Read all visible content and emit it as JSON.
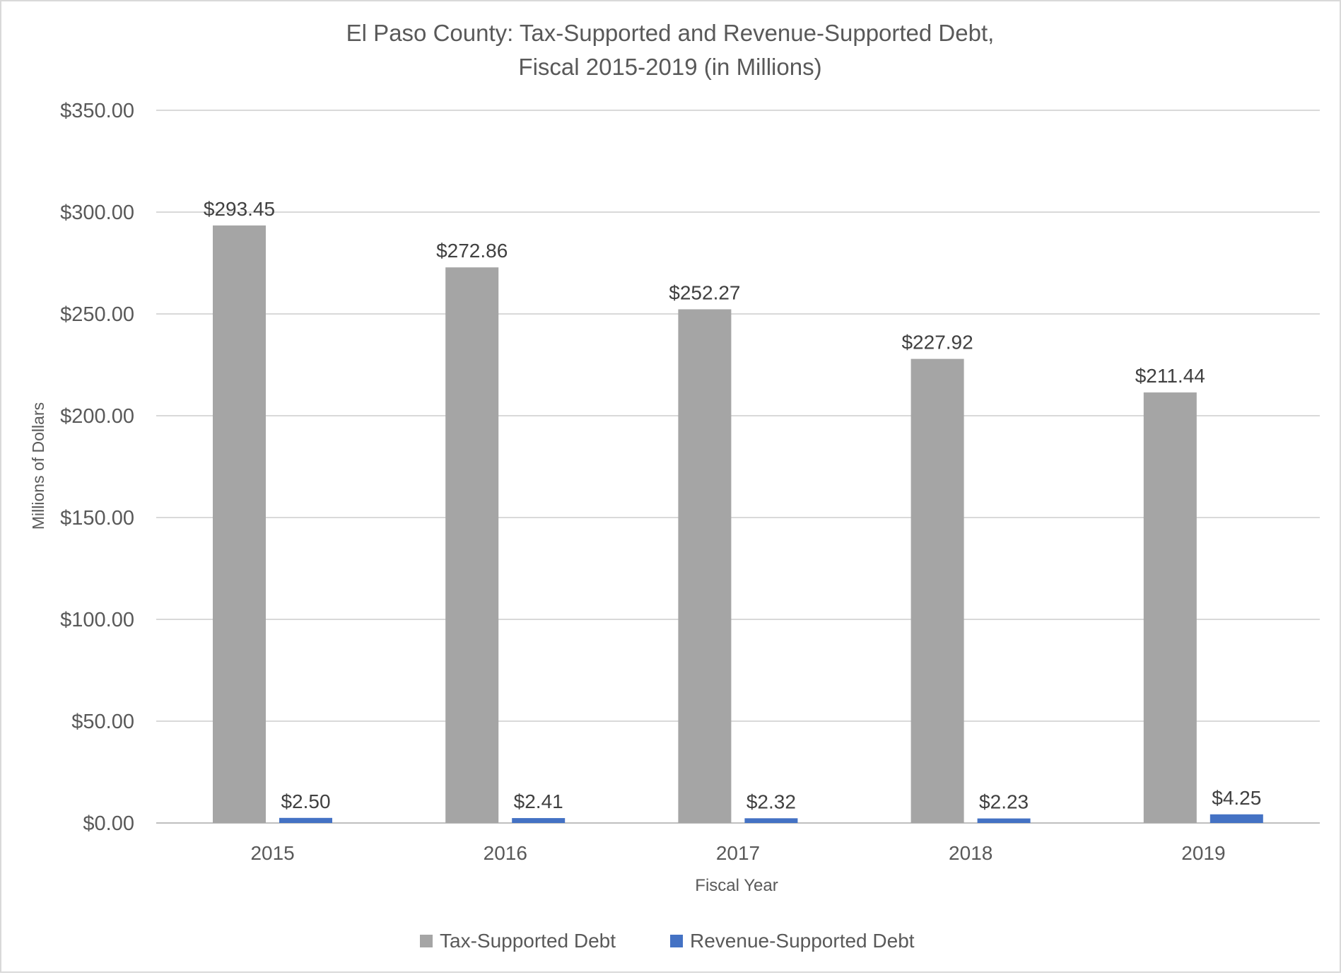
{
  "chart_data": {
    "type": "bar",
    "title": [
      "El Paso County: Tax-Supported and Revenue-Supported Debt,",
      "Fiscal 2015-2019 (in Millions)"
    ],
    "xlabel": "Fiscal Year",
    "ylabel": "Millions of Dollars",
    "ylim": [
      0,
      350
    ],
    "yticks": [
      0,
      50,
      100,
      150,
      200,
      250,
      300,
      350
    ],
    "ytick_labels": [
      "$0.00",
      "$50.00",
      "$100.00",
      "$150.00",
      "$200.00",
      "$250.00",
      "$300.00",
      "$350.00"
    ],
    "grid": true,
    "legend_position": "bottom",
    "categories": [
      "2015",
      "2016",
      "2017",
      "2018",
      "2019"
    ],
    "series": [
      {
        "name": "Tax-Supported Debt",
        "color": "#a5a5a5",
        "values": [
          293.45,
          272.86,
          252.27,
          227.92,
          211.44
        ],
        "labels": [
          "$293.45",
          "$272.86",
          "$252.27",
          "$227.92",
          "$211.44"
        ]
      },
      {
        "name": "Revenue-Supported Debt",
        "color": "#4472c4",
        "values": [
          2.5,
          2.41,
          2.32,
          2.23,
          4.25
        ],
        "labels": [
          "$2.50",
          "$2.41",
          "$2.32",
          "$2.23",
          "$4.25"
        ]
      }
    ]
  }
}
